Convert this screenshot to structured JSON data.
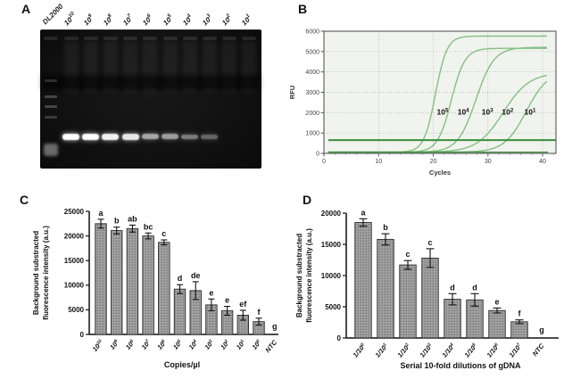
{
  "panels": {
    "a": {
      "label": "A"
    },
    "b": {
      "label": "B"
    },
    "c": {
      "label": "C"
    },
    "d": {
      "label": "D"
    }
  },
  "gel": {
    "lanes": [
      {
        "label": "DL2000",
        "type": "ladder",
        "band": 0
      },
      {
        "label": "10^10",
        "type": "sample",
        "band": 1.0
      },
      {
        "label": "10^9",
        "type": "sample",
        "band": 1.0
      },
      {
        "label": "10^8",
        "type": "sample",
        "band": 0.95
      },
      {
        "label": "10^7",
        "type": "sample",
        "band": 0.9
      },
      {
        "label": "10^6",
        "type": "sample",
        "band": 0.62
      },
      {
        "label": "10^5",
        "type": "sample",
        "band": 0.58
      },
      {
        "label": "10^4",
        "type": "sample",
        "band": 0.45
      },
      {
        "label": "10^3",
        "type": "sample",
        "band": 0.36
      },
      {
        "label": "10^2",
        "type": "sample",
        "band": 0
      },
      {
        "label": "10^1",
        "type": "sample",
        "band": 0
      }
    ]
  },
  "chart_data": [
    {
      "id": "B",
      "type": "line",
      "title": "",
      "xlabel": "Cycles",
      "ylabel": "RFU",
      "xlim": [
        0,
        42.5
      ],
      "ylim": [
        0,
        6000
      ],
      "xticks": [
        0,
        10,
        20,
        30,
        40
      ],
      "yticks": [
        0,
        1000,
        2000,
        3000,
        4000,
        5000,
        6000
      ],
      "grid": true,
      "plot_bg": "#f1f3ee",
      "curve_color": "#84c084",
      "threshold_color": "#3c8f3c",
      "threshold_rfu": 650,
      "baseline_rfu": 60,
      "series_label_y": 1900,
      "series": [
        {
          "label": "10^5",
          "ct_midpoint": 20.4,
          "plateau": 5700,
          "slope": 0.95,
          "label_x": 21.7
        },
        {
          "label": "10^4",
          "ct_midpoint": 23.3,
          "plateau": 5100,
          "slope": 0.8,
          "label_x": 25.5
        },
        {
          "label": "10^3",
          "ct_midpoint": 27.8,
          "plateau": 5150,
          "slope": 0.6,
          "label_x": 29.9
        },
        {
          "label": "10^2",
          "ct_midpoint": 32.8,
          "plateau": 3900,
          "slope": 0.42,
          "label_x": 33.6
        },
        {
          "label": "10^1",
          "ct_midpoint": 37.0,
          "plateau": 4000,
          "slope": 0.5,
          "label_x": 37.7
        }
      ]
    },
    {
      "id": "C",
      "type": "bar",
      "title": "",
      "xlabel": "Copies/µl",
      "ylabel_line1": "Background substracted",
      "ylabel_line2": "fluorescence intensity (a.u.)",
      "ylim": [
        0,
        25000
      ],
      "yticks": [
        0,
        5000,
        10000,
        15000,
        20000,
        25000
      ],
      "bar_fill": "#a2a2a2",
      "bar_dot": "#5f5f5f",
      "categories": [
        "10^10",
        "10^9",
        "10^8",
        "10^7",
        "10^6",
        "10^5",
        "10^4",
        "10^3",
        "10^2",
        "10^1",
        "10^0",
        "NTC"
      ],
      "values": [
        22500,
        21100,
        21500,
        20000,
        18700,
        9200,
        8900,
        6000,
        4800,
        3900,
        2600,
        0
      ],
      "errors": [
        900,
        700,
        700,
        600,
        500,
        900,
        1800,
        1200,
        900,
        1000,
        700,
        0
      ],
      "letters": [
        "a",
        "b",
        "ab",
        "bc",
        "c",
        "d",
        "de",
        "e",
        "e",
        "ef",
        "f",
        "g"
      ]
    },
    {
      "id": "D",
      "type": "bar",
      "title": "",
      "xlabel": "Serial 10-fold dilutions of gDNA",
      "ylabel_line1": "Background substracted",
      "ylabel_line2": "fluorescence intensity (a.u.)",
      "ylim": [
        0,
        20000
      ],
      "yticks": [
        0,
        5000,
        10000,
        15000,
        20000
      ],
      "bar_fill": "#a2a2a2",
      "bar_dot": "#5f5f5f",
      "categories": [
        "1/10^0",
        "1/10^1",
        "1/10^2",
        "1/10^3",
        "1/10^4",
        "1/10^5",
        "1/10^6",
        "1/10^7",
        "NTC"
      ],
      "values": [
        18500,
        15800,
        11700,
        12800,
        6200,
        6100,
        4400,
        2600,
        0
      ],
      "errors": [
        600,
        900,
        700,
        1500,
        900,
        1000,
        400,
        300,
        0
      ],
      "letters": [
        "a",
        "b",
        "c",
        "c",
        "d",
        "d",
        "e",
        "f",
        "g"
      ]
    }
  ]
}
